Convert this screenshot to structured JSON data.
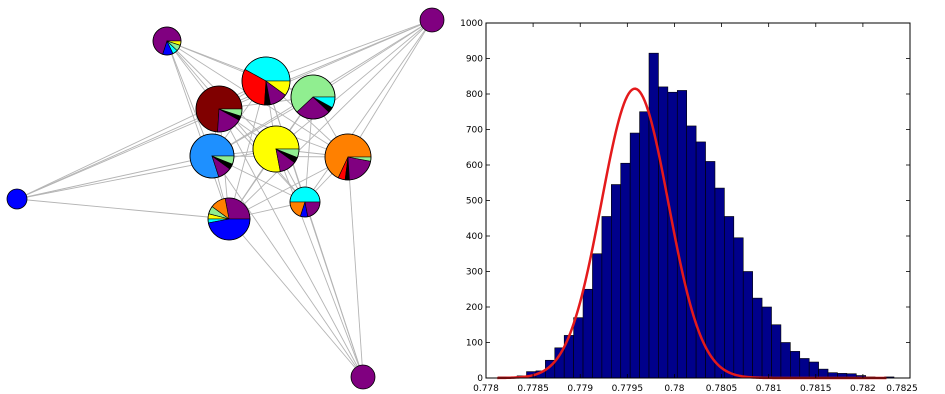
{
  "colors": {
    "bar_fill": "#00008B",
    "curve": "#E41A1C",
    "edge": "#b4b4b4",
    "cluster_palette": {
      "purple": "#800080",
      "cyan": "#00FFFF",
      "red": "#FF0000",
      "green": "#90EE90",
      "dark_red": "#800000",
      "blue": "#0000FF",
      "azure": "#1E90FF",
      "yellow": "#FFFF00",
      "orange": "#FF8000",
      "black": "#000000"
    }
  },
  "network": {
    "nodes": [
      {
        "id": "n1",
        "color": "purple",
        "slices": [
          {
            "c": "purple",
            "f": 0.7
          },
          {
            "c": "blue",
            "f": 0.12
          },
          {
            "c": "cyan",
            "f": 0.06
          },
          {
            "c": "green",
            "f": 0.07
          },
          {
            "c": "yellow",
            "f": 0.05
          }
        ]
      },
      {
        "id": "n2",
        "color": "purple",
        "slices": [
          {
            "c": "purple",
            "f": 1.0
          }
        ]
      },
      {
        "id": "n3",
        "color": "cyan",
        "slices": [
          {
            "c": "cyan",
            "f": 0.42
          },
          {
            "c": "red",
            "f": 0.32
          },
          {
            "c": "black",
            "f": 0.04
          },
          {
            "c": "purple",
            "f": 0.12
          },
          {
            "c": "yellow",
            "f": 0.1
          }
        ]
      },
      {
        "id": "n4",
        "color": "green",
        "slices": [
          {
            "c": "green",
            "f": 0.62
          },
          {
            "c": "purple",
            "f": 0.26
          },
          {
            "c": "black",
            "f": 0.04
          },
          {
            "c": "cyan",
            "f": 0.08
          }
        ]
      },
      {
        "id": "n5",
        "color": "dark_red",
        "slices": [
          {
            "c": "dark_red",
            "f": 0.74
          },
          {
            "c": "purple",
            "f": 0.18
          },
          {
            "c": "black",
            "f": 0.03
          },
          {
            "c": "green",
            "f": 0.05
          }
        ]
      },
      {
        "id": "n6",
        "color": "yellow",
        "slices": [
          {
            "c": "yellow",
            "f": 0.78
          },
          {
            "c": "purple",
            "f": 0.12
          },
          {
            "c": "black",
            "f": 0.04
          },
          {
            "c": "green",
            "f": 0.06
          }
        ]
      },
      {
        "id": "n7",
        "color": "azure",
        "slices": [
          {
            "c": "azure",
            "f": 0.8
          },
          {
            "c": "purple",
            "f": 0.1
          },
          {
            "c": "black",
            "f": 0.04
          },
          {
            "c": "green",
            "f": 0.06
          }
        ]
      },
      {
        "id": "n8",
        "color": "orange",
        "slices": [
          {
            "c": "orange",
            "f": 0.68
          },
          {
            "c": "red",
            "f": 0.05
          },
          {
            "c": "black",
            "f": 0.03
          },
          {
            "c": "purple",
            "f": 0.21
          },
          {
            "c": "green",
            "f": 0.03
          }
        ]
      },
      {
        "id": "n9",
        "color": "blue",
        "slices": [
          {
            "c": "blue",
            "f": 1.0
          }
        ]
      },
      {
        "id": "n10",
        "color": "cyan",
        "slices": [
          {
            "c": "cyan",
            "f": 0.5
          },
          {
            "c": "orange",
            "f": 0.2
          },
          {
            "c": "blue",
            "f": 0.08
          },
          {
            "c": "purple",
            "f": 0.22
          }
        ]
      },
      {
        "id": "n11",
        "color": "blue",
        "slices": [
          {
            "c": "purple",
            "f": 0.28
          },
          {
            "c": "orange",
            "f": 0.12
          },
          {
            "c": "green",
            "f": 0.06
          },
          {
            "c": "yellow",
            "f": 0.04
          },
          {
            "c": "cyan",
            "f": 0.03
          },
          {
            "c": "blue",
            "f": 0.47
          }
        ]
      },
      {
        "id": "n12",
        "color": "purple",
        "slices": [
          {
            "c": "purple",
            "f": 1.0
          }
        ]
      }
    ],
    "edges": [
      [
        "n1",
        "n3"
      ],
      [
        "n1",
        "n4"
      ],
      [
        "n1",
        "n5"
      ],
      [
        "n1",
        "n6"
      ],
      [
        "n1",
        "n7"
      ],
      [
        "n1",
        "n8"
      ],
      [
        "n1",
        "n10"
      ],
      [
        "n1",
        "n11"
      ],
      [
        "n2",
        "n3"
      ],
      [
        "n2",
        "n4"
      ],
      [
        "n2",
        "n5"
      ],
      [
        "n2",
        "n6"
      ],
      [
        "n2",
        "n7"
      ],
      [
        "n2",
        "n8"
      ],
      [
        "n2",
        "n9"
      ],
      [
        "n2",
        "n10"
      ],
      [
        "n2",
        "n11"
      ],
      [
        "n3",
        "n4"
      ],
      [
        "n3",
        "n5"
      ],
      [
        "n3",
        "n6"
      ],
      [
        "n3",
        "n7"
      ],
      [
        "n3",
        "n8"
      ],
      [
        "n3",
        "n10"
      ],
      [
        "n3",
        "n11"
      ],
      [
        "n4",
        "n5"
      ],
      [
        "n4",
        "n6"
      ],
      [
        "n4",
        "n7"
      ],
      [
        "n4",
        "n8"
      ],
      [
        "n4",
        "n10"
      ],
      [
        "n4",
        "n11"
      ],
      [
        "n5",
        "n6"
      ],
      [
        "n5",
        "n7"
      ],
      [
        "n5",
        "n8"
      ],
      [
        "n5",
        "n10"
      ],
      [
        "n5",
        "n11"
      ],
      [
        "n6",
        "n7"
      ],
      [
        "n6",
        "n8"
      ],
      [
        "n6",
        "n10"
      ],
      [
        "n6",
        "n11"
      ],
      [
        "n7",
        "n8"
      ],
      [
        "n7",
        "n10"
      ],
      [
        "n7",
        "n11"
      ],
      [
        "n8",
        "n10"
      ],
      [
        "n8",
        "n11"
      ],
      [
        "n10",
        "n11"
      ],
      [
        "n9",
        "n3"
      ],
      [
        "n9",
        "n5"
      ],
      [
        "n9",
        "n6"
      ],
      [
        "n9",
        "n7"
      ],
      [
        "n9",
        "n11"
      ],
      [
        "n12",
        "n3"
      ],
      [
        "n12",
        "n5"
      ],
      [
        "n12",
        "n6"
      ],
      [
        "n12",
        "n7"
      ],
      [
        "n12",
        "n8"
      ],
      [
        "n12",
        "n10"
      ],
      [
        "n12",
        "n11"
      ]
    ]
  },
  "chart_data": {
    "type": "bar",
    "subtype": "histogram",
    "title": "",
    "xlabel": "",
    "ylabel": "",
    "xlim": [
      0.778,
      0.7825
    ],
    "ylim": [
      0,
      1000
    ],
    "xticks": [
      "0.778",
      "0.7785",
      "0.779",
      "0.7795",
      "0.78",
      "0.7805",
      "0.781",
      "0.7815",
      "0.782",
      "0.7825"
    ],
    "yticks": [
      "0",
      "100",
      "200",
      "300",
      "400",
      "500",
      "600",
      "700",
      "800",
      "900",
      "1000"
    ],
    "grid": false,
    "bin_edges": [
      0.77813,
      0.77823,
      0.77833,
      0.77843,
      0.77853,
      0.77863,
      0.77873,
      0.77883,
      0.77893,
      0.77903,
      0.77913,
      0.77923,
      0.77933,
      0.77943,
      0.77953,
      0.77963,
      0.77973,
      0.77983,
      0.77993,
      0.78003,
      0.78013,
      0.78023,
      0.78033,
      0.78043,
      0.78053,
      0.78063,
      0.78073,
      0.78083,
      0.78093,
      0.78103,
      0.78113,
      0.78123,
      0.78133,
      0.78143,
      0.78153,
      0.78163,
      0.78173,
      0.78183,
      0.78193,
      0.78203,
      0.78213,
      0.78223,
      0.78233
    ],
    "counts": [
      3,
      2,
      6,
      18,
      20,
      50,
      85,
      120,
      170,
      250,
      350,
      455,
      545,
      605,
      690,
      750,
      915,
      820,
      805,
      810,
      710,
      665,
      610,
      535,
      455,
      395,
      300,
      225,
      200,
      150,
      100,
      75,
      55,
      45,
      25,
      15,
      13,
      12,
      7,
      3,
      2,
      3
    ],
    "fit_curve": {
      "type": "normal",
      "mean": 0.77958,
      "std": 0.000355,
      "peak": 815,
      "x_range": [
        0.77812,
        0.78225
      ]
    }
  }
}
